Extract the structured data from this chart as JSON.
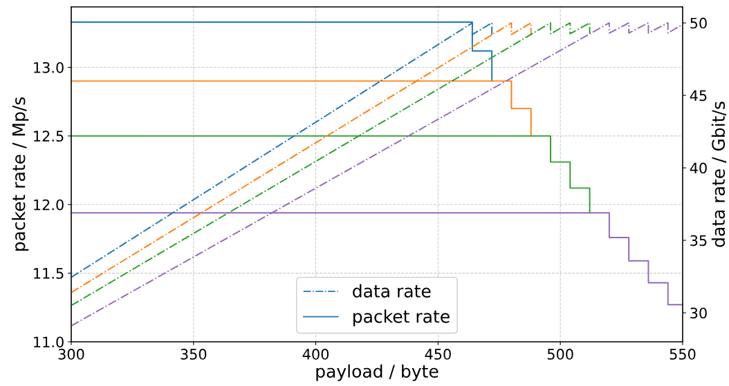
{
  "chart_data": {
    "type": "line",
    "xlabel": "payload / byte",
    "ylabel": "packet rate / Mp/s",
    "y2label": "data rate / Gbit/s",
    "xlim": [
      300,
      550
    ],
    "xticks": [
      300,
      350,
      400,
      450,
      500,
      550
    ],
    "ylim": [
      11.0,
      13.44
    ],
    "yticks": [
      {
        "value": 11,
        "label": "11.0"
      },
      {
        "value": 11.5,
        "label": "11.5"
      },
      {
        "value": 12,
        "label": "12.0"
      },
      {
        "value": 12.5,
        "label": "12.5"
      },
      {
        "value": 13,
        "label": "13.0"
      }
    ],
    "y2lim": [
      28.0,
      51.1
    ],
    "y2ticks": [
      30,
      35,
      40,
      45,
      50
    ],
    "grid": true,
    "legend": "bottom",
    "series": [
      {
        "name": "data rate",
        "color": "#1f77b4",
        "axis": "y2",
        "line_style": "dashdot",
        "x": [
          300,
          464,
          464,
          472,
          472
        ],
        "values": [
          32.45,
          50.0,
          49.2,
          50.0,
          49.2
        ]
      },
      {
        "color": "#ff7f0e",
        "axis": "y2",
        "line_style": "dashdot",
        "x": [
          300,
          480,
          480,
          488,
          488
        ],
        "values": [
          31.4,
          50.0,
          49.2,
          50.0,
          49.2
        ]
      },
      {
        "color": "#2ca02c",
        "axis": "y2",
        "line_style": "dashdot",
        "x": [
          300,
          496,
          496,
          504,
          504,
          512,
          512
        ],
        "values": [
          30.5,
          50.0,
          49.25,
          50.0,
          49.25,
          50.0,
          49.25
        ]
      },
      {
        "color": "#9467bd",
        "axis": "y2",
        "line_style": "dashdot",
        "x": [
          300,
          520,
          520,
          528,
          528,
          536,
          536,
          544,
          544,
          550
        ],
        "values": [
          29.1,
          50.0,
          49.3,
          50.0,
          49.3,
          50.0,
          49.3,
          50.0,
          49.3,
          49.9
        ]
      },
      {
        "name": "packet rate",
        "color": "#1f77b4",
        "line_style": "solid",
        "x": [
          300,
          464,
          464,
          472,
          472
        ],
        "values": [
          13.33,
          13.33,
          13.12,
          13.12,
          12.9
        ]
      },
      {
        "color": "#ff7f0e",
        "line_style": "solid",
        "x": [
          300,
          480,
          480,
          488,
          488
        ],
        "values": [
          12.9,
          12.9,
          12.7,
          12.7,
          12.5
        ]
      },
      {
        "color": "#2ca02c",
        "line_style": "solid",
        "x": [
          300,
          496,
          496,
          504,
          504,
          512,
          512
        ],
        "values": [
          12.5,
          12.5,
          12.31,
          12.31,
          12.12,
          12.12,
          11.94
        ]
      },
      {
        "color": "#9467bd",
        "line_style": "solid",
        "x": [
          300,
          520,
          520,
          528,
          528,
          536,
          536,
          544,
          544,
          550
        ],
        "values": [
          11.94,
          11.94,
          11.76,
          11.76,
          11.59,
          11.59,
          11.43,
          11.43,
          11.27,
          11.27
        ]
      }
    ]
  }
}
